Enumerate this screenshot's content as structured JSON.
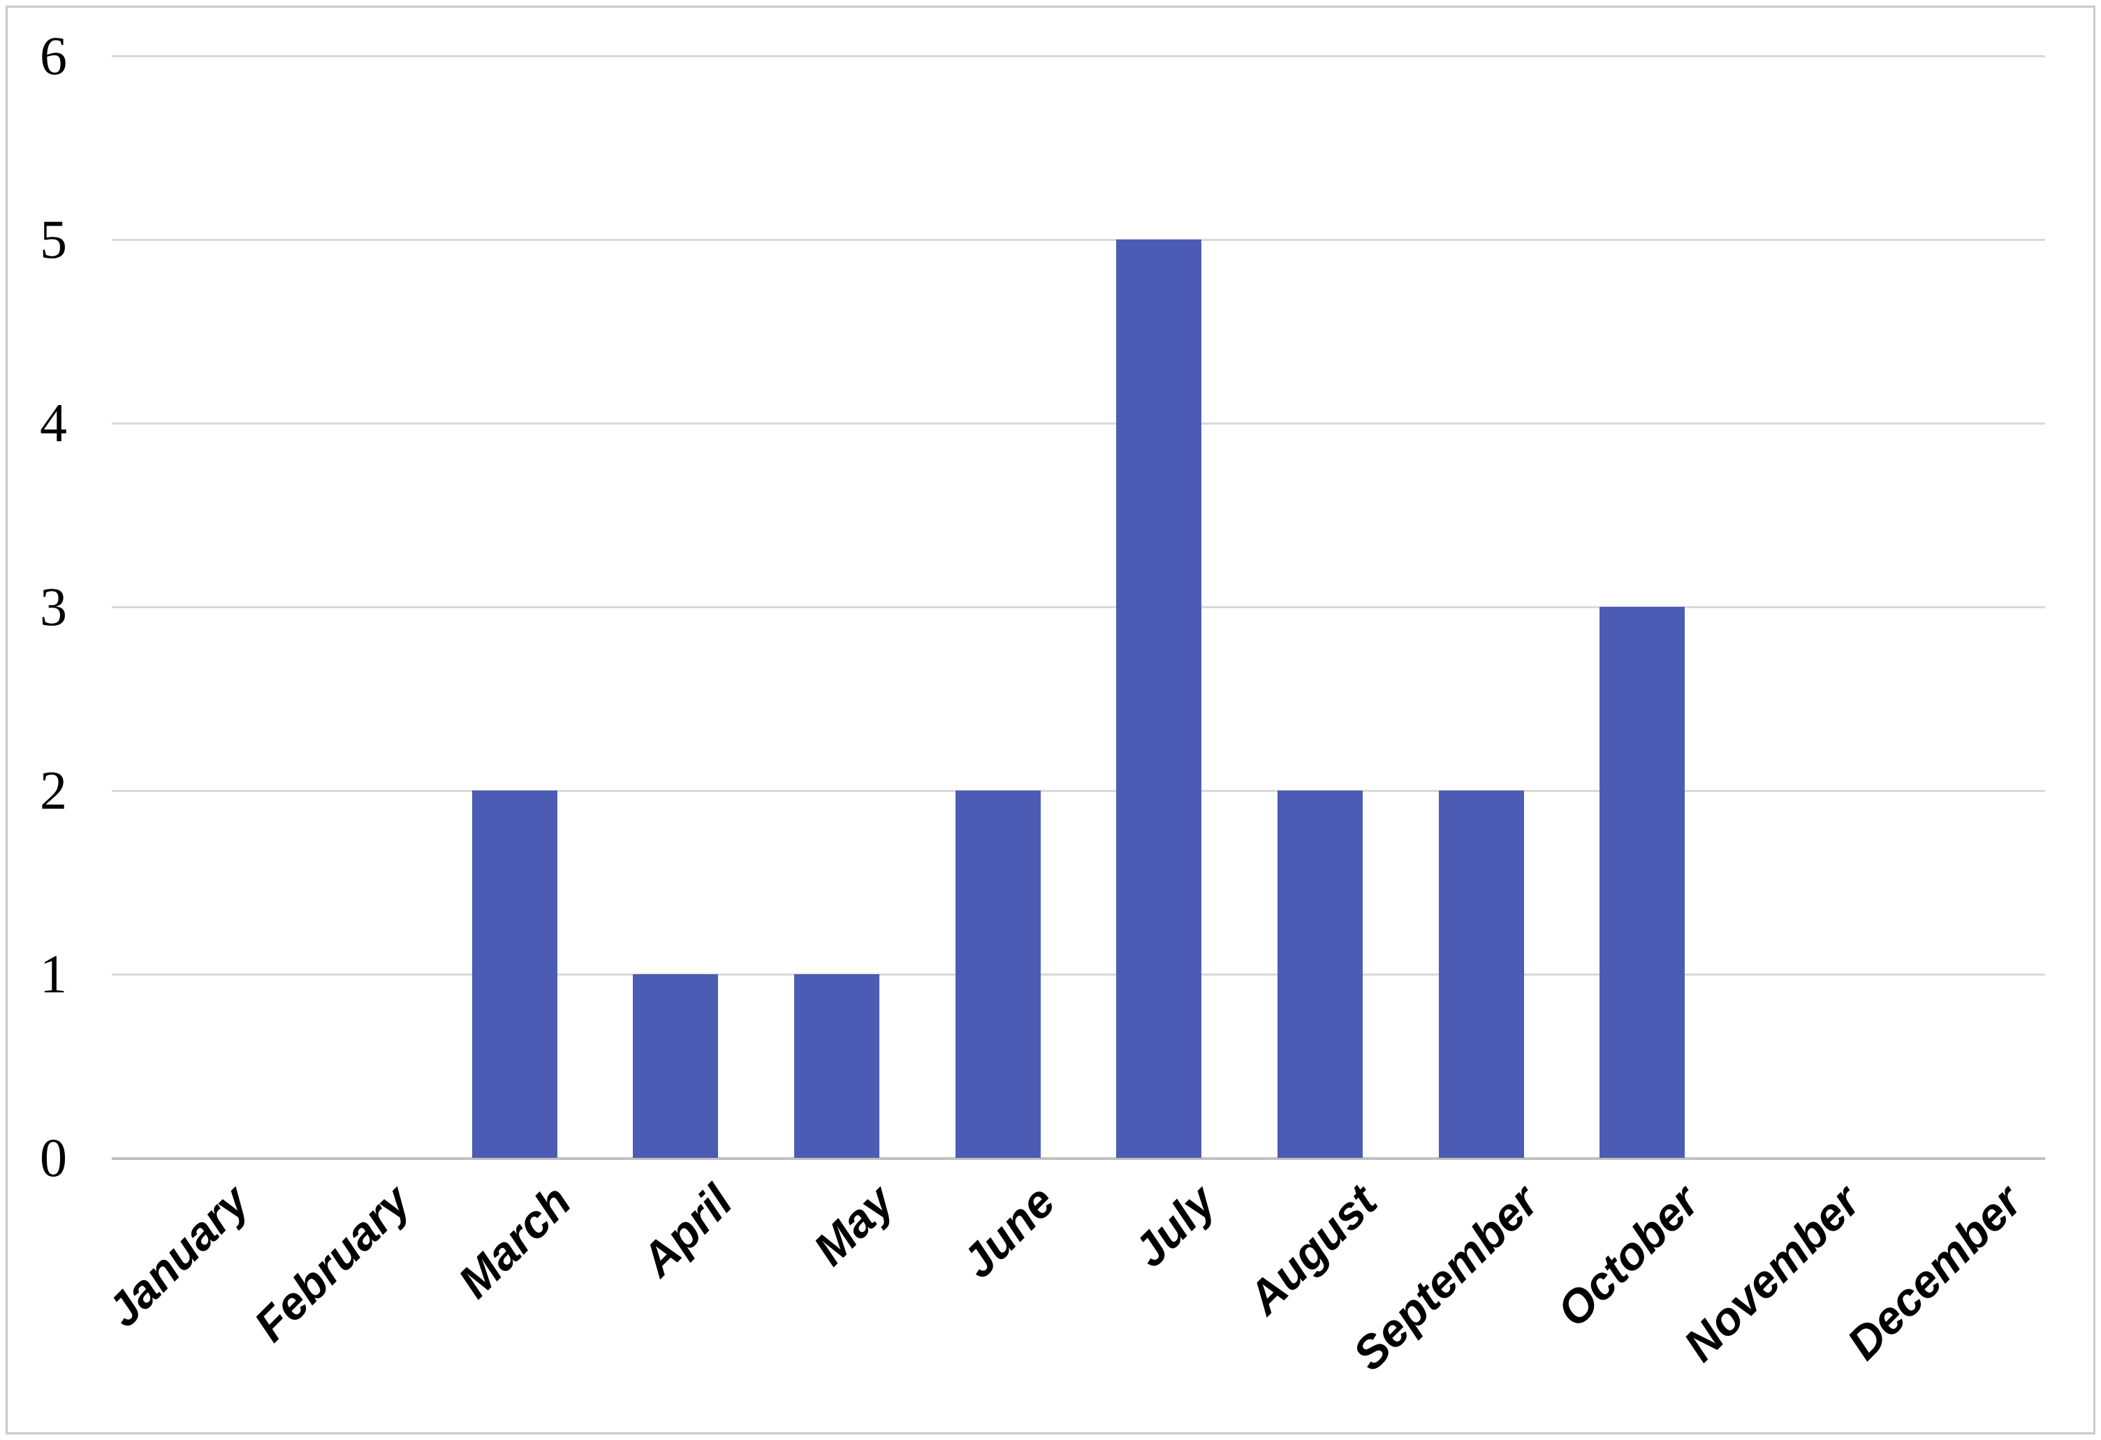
{
  "chart_data": {
    "type": "bar",
    "title": "",
    "xlabel": "",
    "ylabel": "",
    "categories": [
      "January",
      "February",
      "March",
      "April",
      "May",
      "June",
      "July",
      "August",
      "September",
      "October",
      "November",
      "December"
    ],
    "values": [
      0,
      0,
      2,
      1,
      1,
      2,
      5,
      2,
      2,
      3,
      0,
      0
    ],
    "ylim": [
      0,
      6
    ],
    "yticks": [
      0,
      1,
      2,
      3,
      4,
      5,
      6
    ],
    "grid": true,
    "legend": false,
    "colors": {
      "bar": "#4c5cb4",
      "gridline": "#d9d9d9",
      "axis_line": "#c0c0c0",
      "frame_border": "#c9c9c9",
      "text": "#000000",
      "background": "#ffffff"
    }
  }
}
